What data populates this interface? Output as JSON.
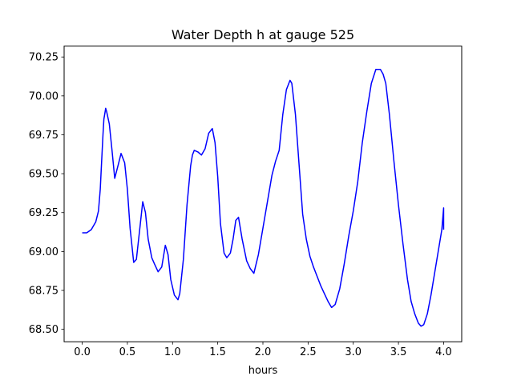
{
  "chart_data": {
    "type": "line",
    "title": "Water Depth h at gauge 525",
    "xlabel": "hours",
    "ylabel": "",
    "xlim": [
      -0.2,
      4.2
    ],
    "ylim": [
      68.42,
      70.32
    ],
    "xticks": [
      0.0,
      0.5,
      1.0,
      1.5,
      2.0,
      2.5,
      3.0,
      3.5,
      4.0
    ],
    "xtick_labels": [
      "0.0",
      "0.5",
      "1.0",
      "1.5",
      "2.0",
      "2.5",
      "3.0",
      "3.5",
      "4.0"
    ],
    "yticks": [
      68.5,
      68.75,
      69.0,
      69.25,
      69.5,
      69.75,
      70.0,
      70.25
    ],
    "ytick_labels": [
      "68.50",
      "68.75",
      "69.00",
      "69.25",
      "69.50",
      "69.75",
      "70.00",
      "70.25"
    ],
    "grid": false,
    "series": [
      {
        "color": "#0000ff",
        "x": [
          0.0,
          0.05,
          0.1,
          0.15,
          0.18,
          0.2,
          0.21,
          0.23,
          0.24,
          0.26,
          0.27,
          0.3,
          0.33,
          0.36,
          0.4,
          0.43,
          0.47,
          0.5,
          0.53,
          0.57,
          0.6,
          0.64,
          0.67,
          0.7,
          0.73,
          0.77,
          0.8,
          0.84,
          0.88,
          0.92,
          0.95,
          0.98,
          1.02,
          1.06,
          1.08,
          1.12,
          1.16,
          1.2,
          1.22,
          1.24,
          1.28,
          1.32,
          1.36,
          1.4,
          1.44,
          1.47,
          1.5,
          1.53,
          1.57,
          1.6,
          1.64,
          1.67,
          1.7,
          1.73,
          1.77,
          1.82,
          1.86,
          1.9,
          1.95,
          2.0,
          2.05,
          2.1,
          2.14,
          2.18,
          2.22,
          2.26,
          2.3,
          2.32,
          2.36,
          2.4,
          2.44,
          2.48,
          2.52,
          2.56,
          2.6,
          2.64,
          2.68,
          2.72,
          2.76,
          2.8,
          2.85,
          2.9,
          2.95,
          3.0,
          3.05,
          3.1,
          3.15,
          3.2,
          3.25,
          3.3,
          3.33,
          3.36,
          3.4,
          3.45,
          3.5,
          3.55,
          3.6,
          3.64,
          3.68,
          3.72,
          3.75,
          3.78,
          3.82,
          3.86,
          3.9,
          3.94,
          3.98,
          4.0,
          4.0
        ],
        "y": [
          69.12,
          69.12,
          69.14,
          69.19,
          69.26,
          69.4,
          69.52,
          69.75,
          69.85,
          69.92,
          69.9,
          69.82,
          69.65,
          69.47,
          69.56,
          69.63,
          69.57,
          69.4,
          69.15,
          68.93,
          68.95,
          69.16,
          69.32,
          69.25,
          69.08,
          68.96,
          68.92,
          68.87,
          68.9,
          69.04,
          68.98,
          68.82,
          68.72,
          68.69,
          68.73,
          68.95,
          69.3,
          69.55,
          69.62,
          69.65,
          69.64,
          69.62,
          69.66,
          69.76,
          69.79,
          69.7,
          69.48,
          69.18,
          68.99,
          68.96,
          68.99,
          69.08,
          69.2,
          69.22,
          69.08,
          68.94,
          68.89,
          68.86,
          68.98,
          69.15,
          69.32,
          69.49,
          69.58,
          69.65,
          69.88,
          70.04,
          70.1,
          70.08,
          69.88,
          69.56,
          69.24,
          69.08,
          68.97,
          68.9,
          68.84,
          68.78,
          68.73,
          68.68,
          68.64,
          68.66,
          68.76,
          68.92,
          69.1,
          69.26,
          69.45,
          69.7,
          69.9,
          70.08,
          70.17,
          70.17,
          70.14,
          70.08,
          69.88,
          69.58,
          69.3,
          69.05,
          68.82,
          68.68,
          68.6,
          68.54,
          68.52,
          68.53,
          68.6,
          68.72,
          68.86,
          69.0,
          69.14,
          69.28,
          69.14
        ]
      }
    ]
  }
}
